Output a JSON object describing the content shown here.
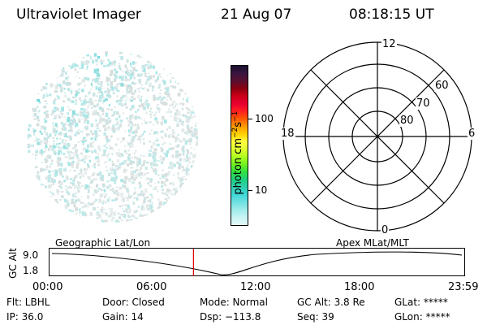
{
  "header": {
    "instrument": "Ultraviolet Imager",
    "date": "21 Aug 07",
    "time": "08:18:15 UT"
  },
  "colorbar": {
    "ticks": [
      "100",
      "10"
    ],
    "unit": "photon cm-2s-1",
    "unit_parts": {
      "base": "photon cm",
      "exp1": "−2",
      "mid": "s",
      "exp2": "−1"
    },
    "colors": [
      "#1a0f2e",
      "#3a1540",
      "#5a1030",
      "#8c0010",
      "#cc0018",
      "#e80030",
      "#ff2020",
      "#ff5a00",
      "#ff9a00",
      "#ffd000",
      "#ffff40",
      "#e0ff30",
      "#b0ff20",
      "#70f020",
      "#30e040",
      "#20d080",
      "#30d0b0",
      "#40d8d8",
      "#70e0e0",
      "#a0ecec",
      "#c8f4f4",
      "#e4f8f8"
    ]
  },
  "polar_plot": {
    "lat_labels": [
      "60",
      "70",
      "80"
    ],
    "mlt_labels": {
      "top": "12",
      "bottom": "0",
      "left": "18",
      "right": "6"
    }
  },
  "timeline": {
    "y_axis_label": "GC Alt",
    "y_ticks": [
      "9.0",
      "1.8"
    ],
    "left_title": "Geographic Lat/Lon",
    "right_title": "Apex MLat/MLT",
    "x_ticks": [
      "00:00",
      "06:00",
      "12:00",
      "18:00",
      "23:59"
    ],
    "current_time_fraction": 0.3474,
    "marker_color": "#dd0000"
  },
  "status": {
    "row1": {
      "flt": "Flt: LBHL",
      "door": "Door: Closed",
      "mode": "Mode: Normal",
      "gc_alt": "GC Alt: 3.8 Re",
      "glat": "GLat: *****"
    },
    "row2": {
      "ip": "IP: 36.0",
      "gain": "Gain: 14",
      "dsp": "Dsp: −113.8",
      "seq": "Seq: 39",
      "glon": "GLon: *****"
    }
  }
}
